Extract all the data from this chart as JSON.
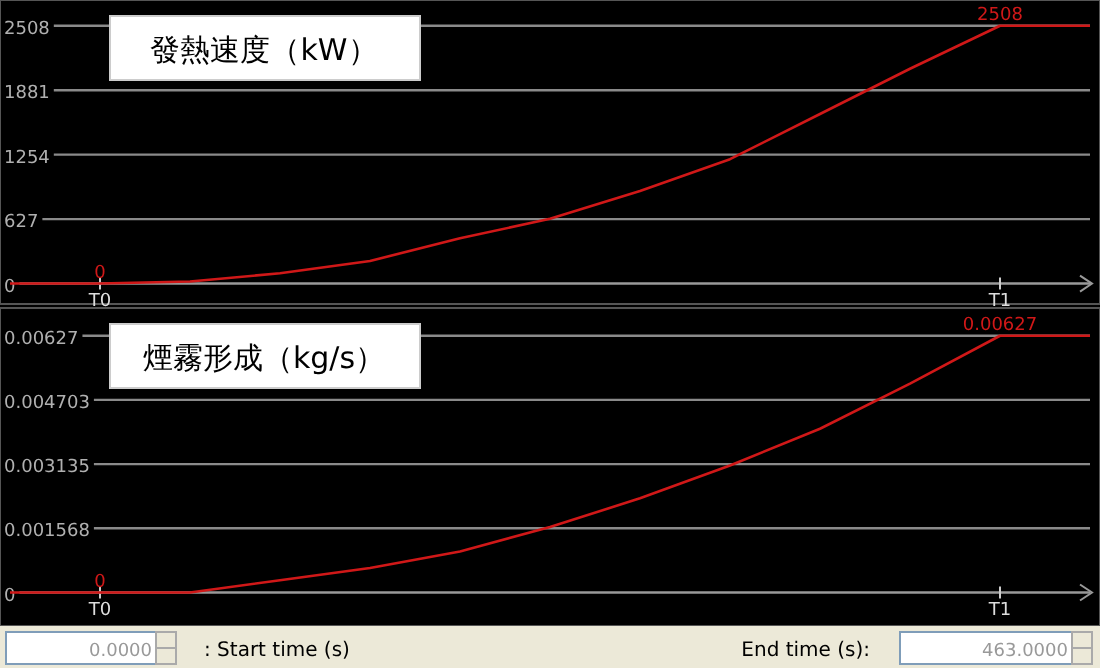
{
  "chart_data": [
    {
      "type": "line",
      "title": "發熱速度（kW）",
      "categories": [
        null,
        "T0",
        null,
        null,
        null,
        null,
        null,
        null,
        null,
        null,
        null,
        "T1",
        null
      ],
      "series": [
        {
          "color": "#d01818",
          "values": [
            0,
            0,
            20,
            100,
            220,
            440,
            630,
            900,
            1210,
            1650,
            2090,
            2508,
            2508
          ],
          "value_labels": [
            null,
            "0",
            null,
            null,
            null,
            null,
            null,
            null,
            null,
            null,
            null,
            "2508",
            null
          ]
        }
      ],
      "ylim": [
        -160,
        2720
      ],
      "yticks": [
        0,
        627,
        1254,
        1881,
        2508
      ],
      "grid": "y"
    },
    {
      "type": "line",
      "title": "煙霧形成（kg/s）",
      "categories": [
        null,
        "T0",
        null,
        null,
        null,
        null,
        null,
        null,
        null,
        null,
        null,
        "T1",
        null
      ],
      "series": [
        {
          "color": "#d01818",
          "values": [
            0,
            0,
            0,
            0.0003,
            0.0006,
            0.001,
            0.0016,
            0.0023,
            0.0031,
            0.004,
            0.0051,
            0.00627,
            0.00627
          ],
          "value_labels": [
            null,
            "0",
            null,
            null,
            null,
            null,
            null,
            null,
            null,
            null,
            null,
            "0.00627",
            null
          ]
        }
      ],
      "ylim": [
        -0.00072,
        0.00685
      ],
      "yticks": [
        0,
        0.001568,
        0.003135,
        0.004703,
        0.00627
      ],
      "grid": "y",
      "annotations": [
        "0.0000",
        ": Start time (s)",
        "End time (s):",
        "463.0000"
      ]
    }
  ]
}
